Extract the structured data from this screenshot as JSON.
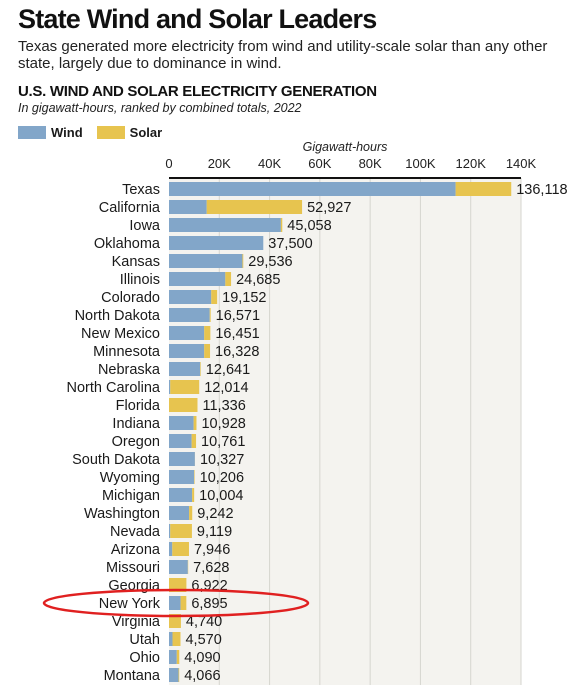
{
  "header": {
    "headline": "State Wind and Solar Leaders",
    "dek": "Texas generated more electricity from wind and utility-scale solar than any other state, largely due to dominance in wind."
  },
  "colors": {
    "wind": "#82a6c9",
    "solar": "#e7c44f",
    "plot_background": "#f4f3ef",
    "highlight_ellipse": "#e02020"
  },
  "chart_data": {
    "type": "bar",
    "orientation": "horizontal",
    "stacked": true,
    "title": "U.S. WIND AND SOLAR ELECTRICITY GENERATION",
    "subtitle": "In gigawatt-hours, ranked by combined totals, 2022",
    "xlabel": "Gigawatt-hours",
    "xlim": [
      0,
      140000
    ],
    "xticks": [
      0,
      20000,
      40000,
      60000,
      80000,
      100000,
      120000,
      140000
    ],
    "xtick_labels": [
      "0",
      "20K",
      "40K",
      "60K",
      "80K",
      "100K",
      "120K",
      "140K"
    ],
    "grid": true,
    "legend_position": "top-left",
    "categories": [
      "Texas",
      "California",
      "Iowa",
      "Oklahoma",
      "Kansas",
      "Illinois",
      "Colorado",
      "North Dakota",
      "New Mexico",
      "Minnesota",
      "Nebraska",
      "North Carolina",
      "Florida",
      "Indiana",
      "Oregon",
      "South Dakota",
      "Wyoming",
      "Michigan",
      "Washington",
      "Nevada",
      "Arizona",
      "Missouri",
      "Georgia",
      "New York",
      "Virginia",
      "Utah",
      "Ohio",
      "Montana"
    ],
    "series": [
      {
        "name": "Wind",
        "values": [
          114000,
          15000,
          44500,
          37500,
          29200,
          22400,
          16800,
          16200,
          14000,
          14000,
          12400,
          500,
          0,
          9800,
          9000,
          10300,
          10000,
          9200,
          8000,
          500,
          1300,
          7500,
          0,
          4600,
          0,
          1400,
          3100,
          3800
        ]
      },
      {
        "name": "Solar",
        "values": [
          22118,
          37927,
          558,
          0,
          336,
          2285,
          2352,
          371,
          2451,
          2328,
          241,
          11514,
          11336,
          1128,
          1761,
          27,
          206,
          804,
          1242,
          8619,
          6646,
          128,
          6922,
          2295,
          4740,
          3170,
          990,
          266
        ]
      }
    ],
    "totals": [
      "136,118",
      "52,927",
      "45,058",
      "37,500",
      "29,536",
      "24,685",
      "19,152",
      "16,571",
      "16,451",
      "16,328",
      "12,641",
      "12,014",
      "11,336",
      "10,928",
      "10,761",
      "10,327",
      "10,206",
      "10,004",
      "9,242",
      "9,119",
      "7,946",
      "7,628",
      "6,922",
      "6,895",
      "4,740",
      "4,570",
      "4,090",
      "4,066"
    ],
    "highlighted_category": "New York"
  }
}
